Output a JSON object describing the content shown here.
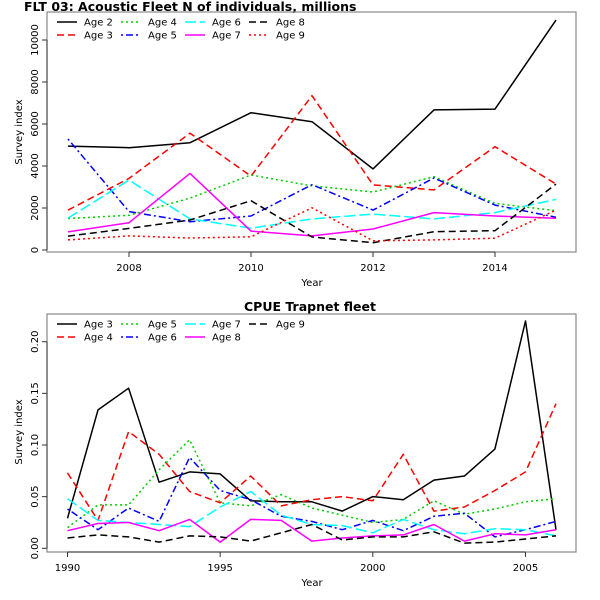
{
  "chart_data": [
    {
      "type": "line",
      "title": "FLT 03: Acoustic Fleet   N of individuals, millions",
      "xlabel": "Year",
      "ylabel": "Survey index",
      "xlim": [
        2007,
        2015
      ],
      "ylim": [
        0,
        11000
      ],
      "xticks": [
        2008,
        2010,
        2012,
        2014
      ],
      "yticks": [
        0,
        2000,
        4000,
        6000,
        8000,
        10000
      ],
      "grid": false,
      "legend_position": "top-left",
      "x": [
        2007,
        2008,
        2009,
        2010,
        2011,
        2012,
        2013,
        2014,
        2015
      ],
      "series": [
        {
          "name": "Age 2",
          "color": "#000000",
          "dash": "solid",
          "values": [
            4950,
            4870,
            5110,
            6540,
            6110,
            3860,
            6670,
            6710,
            10950
          ]
        },
        {
          "name": "Age 3",
          "color": "#ff0000",
          "dash": "dashed",
          "values": [
            1900,
            3410,
            5560,
            3520,
            7350,
            3100,
            2860,
            4920,
            3140
          ]
        },
        {
          "name": "Age 4",
          "color": "#00cd00",
          "dash": "dotted",
          "values": [
            1500,
            1650,
            2470,
            3570,
            3050,
            2760,
            3490,
            2220,
            1870
          ]
        },
        {
          "name": "Age 5",
          "color": "#0000ff",
          "dash": "dotdash",
          "values": [
            5285,
            1830,
            1350,
            1620,
            3110,
            1900,
            3430,
            2140,
            1560
          ]
        },
        {
          "name": "Age 6",
          "color": "#00ffff",
          "dash": "longdash",
          "values": [
            1520,
            3330,
            1480,
            1040,
            1480,
            1710,
            1480,
            1780,
            2410
          ]
        },
        {
          "name": "Age 7",
          "color": "#ff00ff",
          "dash": "solid",
          "values": [
            860,
            1300,
            3650,
            900,
            670,
            1000,
            1780,
            1620,
            1510
          ]
        },
        {
          "name": "Age 8",
          "color": "#000000",
          "dash": "dashed",
          "values": [
            660,
            1030,
            1430,
            2350,
            620,
            350,
            870,
            920,
            3140
          ]
        },
        {
          "name": "Age 9",
          "color": "#ff0000",
          "dash": "dotted",
          "values": [
            480,
            670,
            570,
            630,
            2010,
            440,
            480,
            560,
            1900
          ]
        }
      ]
    },
    {
      "type": "line",
      "title": "CPUE Trapnet fleet",
      "xlabel": "Year",
      "ylabel": "Survey index",
      "xlim": [
        1990,
        2006
      ],
      "ylim": [
        0,
        0.22
      ],
      "xticks": [
        1990,
        1995,
        2000,
        2005
      ],
      "yticks": [
        0.0,
        0.05,
        0.1,
        0.15,
        0.2
      ],
      "ytick_labels": [
        "0.00",
        "0.05",
        "0.10",
        "0.15",
        "0.20"
      ],
      "grid": false,
      "legend_position": "top-left",
      "x": [
        1990,
        1991,
        1992,
        1993,
        1994,
        1995,
        1996,
        1997,
        1998,
        1999,
        2000,
        2001,
        2002,
        2003,
        2004,
        2005,
        2006
      ],
      "series": [
        {
          "name": "Age 3",
          "color": "#000000",
          "dash": "solid",
          "values": [
            0.029,
            0.134,
            0.155,
            0.064,
            0.074,
            0.072,
            0.046,
            0.045,
            0.045,
            0.036,
            0.05,
            0.047,
            0.066,
            0.07,
            0.096,
            0.22,
            0.018
          ]
        },
        {
          "name": "Age 4",
          "color": "#ff0000",
          "dash": "dashed",
          "values": [
            0.073,
            0.027,
            0.113,
            0.091,
            0.055,
            0.044,
            0.07,
            0.041,
            0.047,
            0.05,
            0.046,
            0.091,
            0.036,
            0.04,
            0.056,
            0.074,
            0.14
          ]
        },
        {
          "name": "Age 5",
          "color": "#00cd00",
          "dash": "dotted",
          "values": [
            0.02,
            0.042,
            0.042,
            0.076,
            0.105,
            0.044,
            0.041,
            0.052,
            0.039,
            0.032,
            0.025,
            0.028,
            0.046,
            0.033,
            0.038,
            0.045,
            0.048
          ]
        },
        {
          "name": "Age 6",
          "color": "#0000ff",
          "dash": "dotdash",
          "values": [
            0.038,
            0.018,
            0.039,
            0.026,
            0.088,
            0.056,
            0.047,
            0.031,
            0.026,
            0.018,
            0.027,
            0.017,
            0.031,
            0.034,
            0.011,
            0.018,
            0.026
          ]
        },
        {
          "name": "Age 7",
          "color": "#00ffff",
          "dash": "longdash",
          "values": [
            0.048,
            0.027,
            0.025,
            0.023,
            0.021,
            0.04,
            0.055,
            0.032,
            0.023,
            0.022,
            0.015,
            0.028,
            0.018,
            0.014,
            0.019,
            0.018,
            0.012
          ]
        },
        {
          "name": "Age 8",
          "color": "#ff00ff",
          "dash": "solid",
          "values": [
            0.017,
            0.024,
            0.025,
            0.017,
            0.028,
            0.006,
            0.028,
            0.027,
            0.007,
            0.01,
            0.012,
            0.013,
            0.023,
            0.007,
            0.014,
            0.013,
            0.018
          ]
        },
        {
          "name": "Age 9",
          "color": "#000000",
          "dash": "dashed",
          "values": [
            0.01,
            0.013,
            0.011,
            0.006,
            0.012,
            0.011,
            0.007,
            0.015,
            0.023,
            0.008,
            0.011,
            0.011,
            0.016,
            0.005,
            0.006,
            0.009,
            0.012
          ]
        }
      ]
    }
  ]
}
